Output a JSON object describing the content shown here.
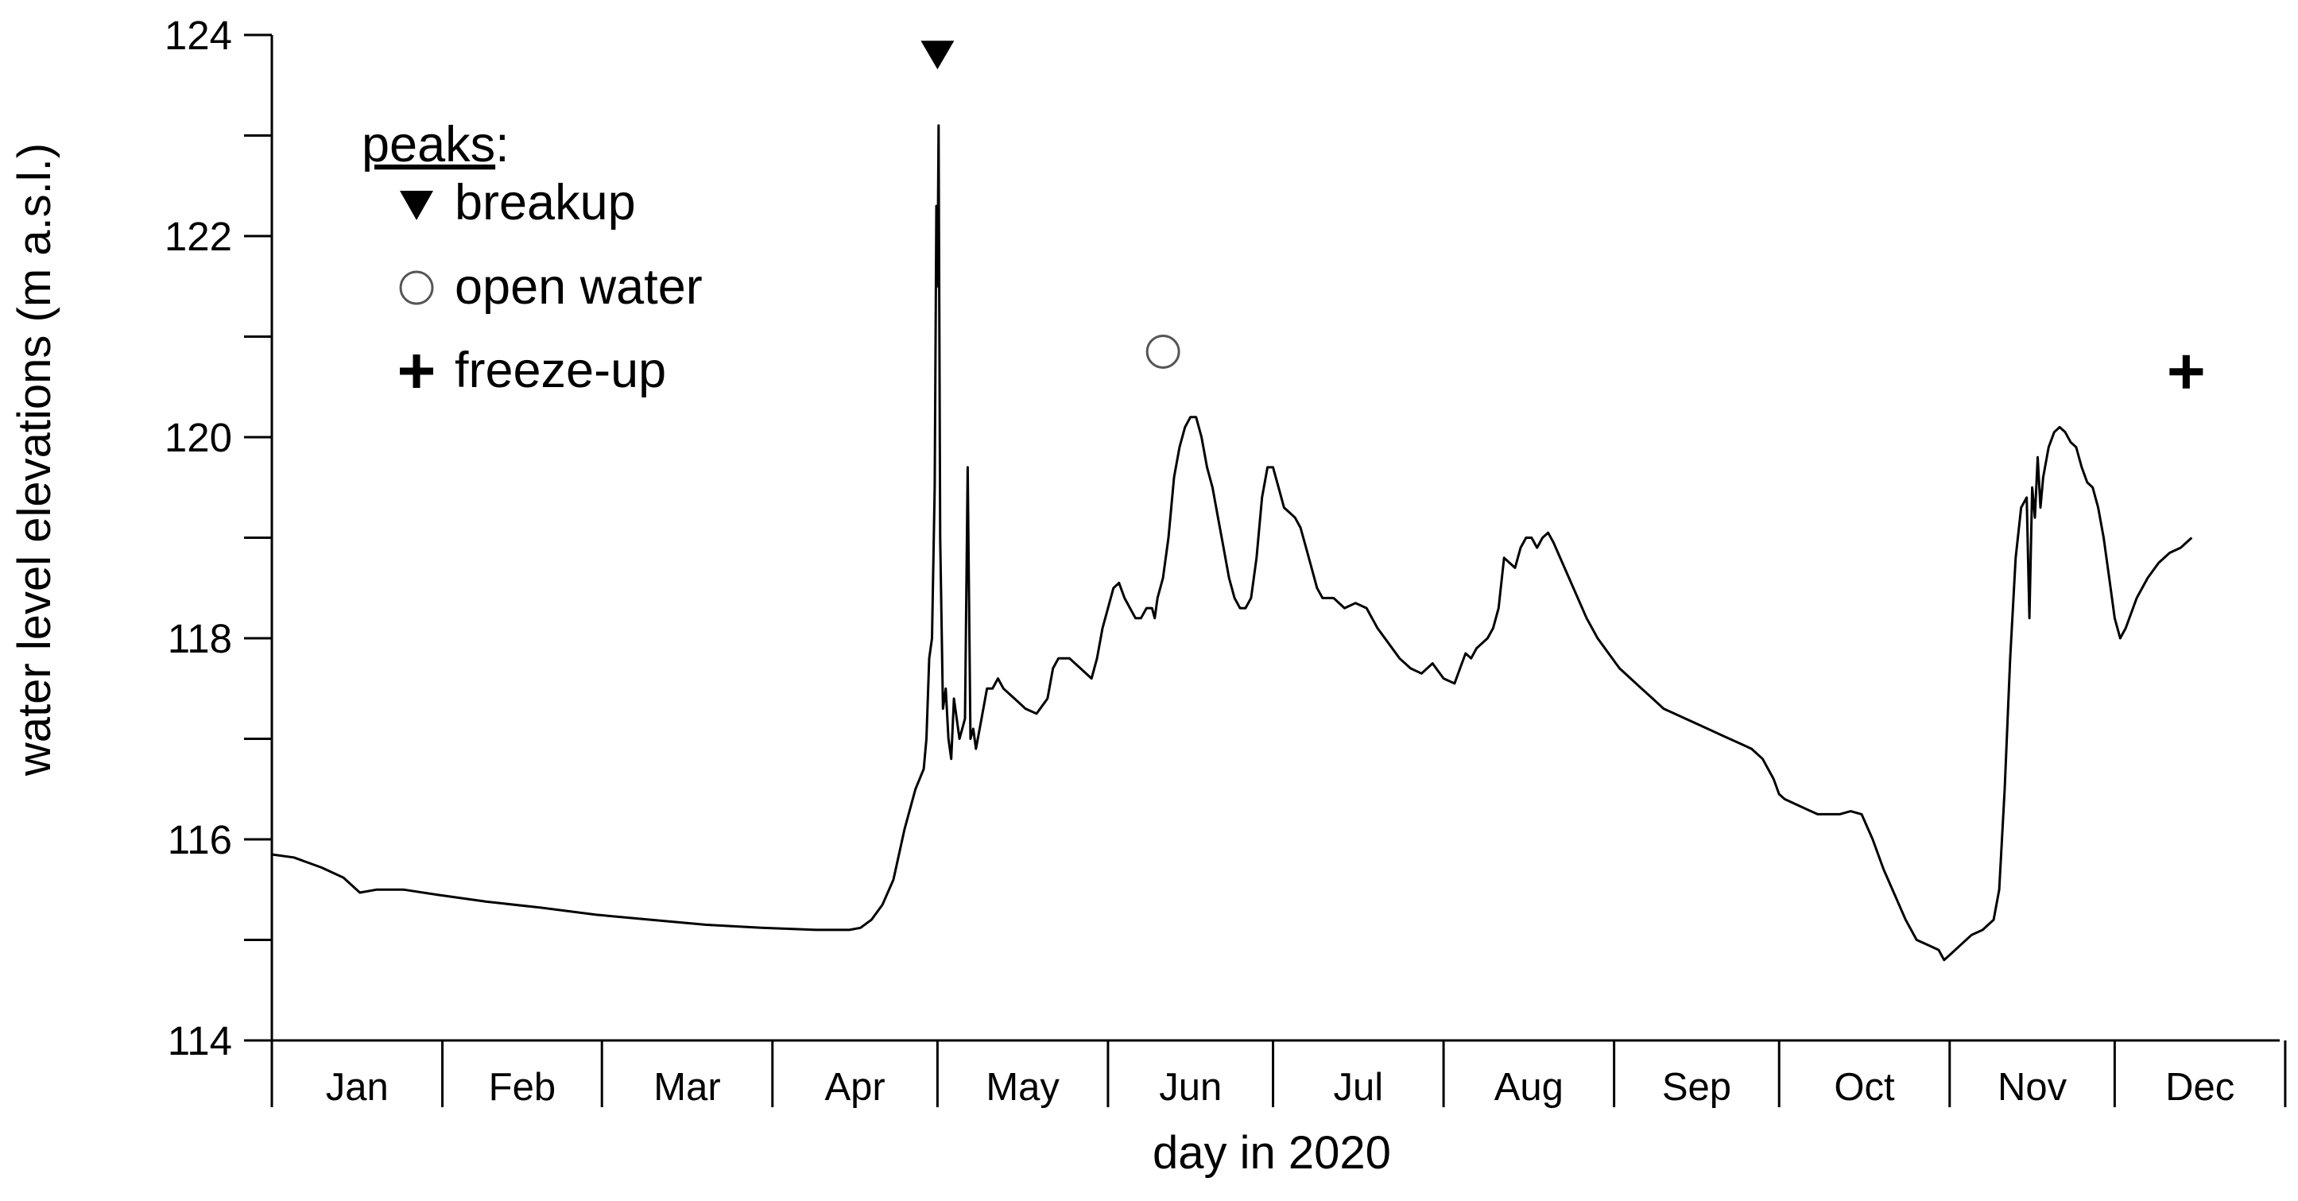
{
  "chart_data": {
    "type": "line",
    "xlabel": "day in 2020",
    "ylabel": "water level elevations (m a.s.l.)",
    "xlim": [
      1,
      366
    ],
    "ylim": [
      114,
      124
    ],
    "y_ticks": [
      114,
      116,
      118,
      120,
      122,
      124
    ],
    "y_minor_step": 1,
    "month_labels": [
      "Jan",
      "Feb",
      "Mar",
      "Apr",
      "May",
      "Jun",
      "Jul",
      "Aug",
      "Sep",
      "Oct",
      "Nov",
      "Dec"
    ],
    "month_days": [
      31,
      29,
      31,
      30,
      31,
      30,
      31,
      31,
      30,
      31,
      30,
      31
    ],
    "grid": false,
    "legend": {
      "position": "top-left",
      "title": "peaks",
      "title_suffix": ":",
      "entries": [
        {
          "marker": "down-triangle",
          "label": "breakup"
        },
        {
          "marker": "open-circle",
          "label": "open water"
        },
        {
          "marker": "plus",
          "label": "freeze-up"
        }
      ]
    },
    "peak_markers": [
      {
        "type": "breakup",
        "marker": "down-triangle",
        "day": 122,
        "value": 123.8
      },
      {
        "type": "open water",
        "marker": "open-circle",
        "day": 163,
        "value": 120.85
      },
      {
        "type": "freeze-up",
        "marker": "plus",
        "day": 349,
        "value": 120.65
      }
    ],
    "series": [
      {
        "points": [
          [
            1,
            115.85
          ],
          [
            5,
            115.82
          ],
          [
            10,
            115.72
          ],
          [
            14,
            115.62
          ],
          [
            17,
            115.47
          ],
          [
            20,
            115.5
          ],
          [
            25,
            115.5
          ],
          [
            31,
            115.45
          ],
          [
            40,
            115.38
          ],
          [
            50,
            115.32
          ],
          [
            60,
            115.25
          ],
          [
            70,
            115.2
          ],
          [
            80,
            115.15
          ],
          [
            90,
            115.12
          ],
          [
            100,
            115.1
          ],
          [
            106,
            115.1
          ],
          [
            108,
            115.12
          ],
          [
            110,
            115.2
          ],
          [
            112,
            115.35
          ],
          [
            114,
            115.6
          ],
          [
            116,
            116.1
          ],
          [
            118,
            116.5
          ],
          [
            119.5,
            116.7
          ],
          [
            120,
            117.0
          ],
          [
            120.5,
            117.8
          ],
          [
            121,
            118.0
          ],
          [
            121.5,
            119.5
          ],
          [
            121.8,
            122.3
          ],
          [
            122,
            121.5
          ],
          [
            122.2,
            123.1
          ],
          [
            122.5,
            119.0
          ],
          [
            123,
            117.3
          ],
          [
            123.5,
            117.5
          ],
          [
            124,
            117.0
          ],
          [
            124.5,
            116.8
          ],
          [
            125,
            117.4
          ],
          [
            126,
            117.0
          ],
          [
            127,
            117.2
          ],
          [
            127.5,
            119.7
          ],
          [
            128,
            117.0
          ],
          [
            128.5,
            117.1
          ],
          [
            129,
            116.9
          ],
          [
            130,
            117.2
          ],
          [
            131,
            117.5
          ],
          [
            132,
            117.5
          ],
          [
            133,
            117.6
          ],
          [
            134,
            117.5
          ],
          [
            136,
            117.4
          ],
          [
            138,
            117.3
          ],
          [
            140,
            117.25
          ],
          [
            142,
            117.4
          ],
          [
            143,
            117.7
          ],
          [
            144,
            117.8
          ],
          [
            146,
            117.8
          ],
          [
            148,
            117.7
          ],
          [
            150,
            117.6
          ],
          [
            151,
            117.8
          ],
          [
            152,
            118.1
          ],
          [
            153,
            118.3
          ],
          [
            154,
            118.5
          ],
          [
            155,
            118.55
          ],
          [
            156,
            118.4
          ],
          [
            157,
            118.3
          ],
          [
            158,
            118.2
          ],
          [
            159,
            118.2
          ],
          [
            160,
            118.3
          ],
          [
            161,
            118.3
          ],
          [
            161.5,
            118.2
          ],
          [
            162,
            118.4
          ],
          [
            163,
            118.6
          ],
          [
            164,
            119.0
          ],
          [
            165,
            119.6
          ],
          [
            166,
            119.9
          ],
          [
            167,
            120.1
          ],
          [
            168,
            120.2
          ],
          [
            169,
            120.2
          ],
          [
            170,
            120.0
          ],
          [
            171,
            119.7
          ],
          [
            172,
            119.5
          ],
          [
            173,
            119.2
          ],
          [
            174,
            118.9
          ],
          [
            175,
            118.6
          ],
          [
            176,
            118.4
          ],
          [
            177,
            118.3
          ],
          [
            178,
            118.3
          ],
          [
            179,
            118.4
          ],
          [
            180,
            118.8
          ],
          [
            181,
            119.4
          ],
          [
            182,
            119.7
          ],
          [
            183,
            119.7
          ],
          [
            184,
            119.5
          ],
          [
            185,
            119.3
          ],
          [
            186,
            119.25
          ],
          [
            187,
            119.2
          ],
          [
            188,
            119.1
          ],
          [
            189,
            118.9
          ],
          [
            190,
            118.7
          ],
          [
            191,
            118.5
          ],
          [
            192,
            118.4
          ],
          [
            194,
            118.4
          ],
          [
            196,
            118.3
          ],
          [
            198,
            118.35
          ],
          [
            200,
            118.3
          ],
          [
            202,
            118.1
          ],
          [
            204,
            117.95
          ],
          [
            206,
            117.8
          ],
          [
            208,
            117.7
          ],
          [
            210,
            117.65
          ],
          [
            212,
            117.75
          ],
          [
            214,
            117.6
          ],
          [
            216,
            117.55
          ],
          [
            217,
            117.7
          ],
          [
            218,
            117.85
          ],
          [
            219,
            117.8
          ],
          [
            220,
            117.9
          ],
          [
            222,
            118.0
          ],
          [
            223,
            118.1
          ],
          [
            224,
            118.3
          ],
          [
            225,
            118.8
          ],
          [
            226,
            118.75
          ],
          [
            227,
            118.7
          ],
          [
            228,
            118.9
          ],
          [
            229,
            119.0
          ],
          [
            230,
            119.0
          ],
          [
            231,
            118.9
          ],
          [
            232,
            119.0
          ],
          [
            233,
            119.05
          ],
          [
            234,
            118.95
          ],
          [
            236,
            118.7
          ],
          [
            238,
            118.45
          ],
          [
            240,
            118.2
          ],
          [
            242,
            118.0
          ],
          [
            244,
            117.85
          ],
          [
            246,
            117.7
          ],
          [
            248,
            117.6
          ],
          [
            250,
            117.5
          ],
          [
            252,
            117.4
          ],
          [
            254,
            117.3
          ],
          [
            256,
            117.25
          ],
          [
            258,
            117.2
          ],
          [
            260,
            117.15
          ],
          [
            262,
            117.1
          ],
          [
            264,
            117.05
          ],
          [
            266,
            117.0
          ],
          [
            268,
            116.95
          ],
          [
            270,
            116.9
          ],
          [
            272,
            116.8
          ],
          [
            274,
            116.6
          ],
          [
            275,
            116.45
          ],
          [
            276,
            116.4
          ],
          [
            278,
            116.35
          ],
          [
            280,
            116.3
          ],
          [
            282,
            116.25
          ],
          [
            284,
            116.25
          ],
          [
            286,
            116.25
          ],
          [
            288,
            116.28
          ],
          [
            290,
            116.25
          ],
          [
            292,
            116.0
          ],
          [
            294,
            115.7
          ],
          [
            296,
            115.45
          ],
          [
            298,
            115.2
          ],
          [
            300,
            115.0
          ],
          [
            302,
            114.95
          ],
          [
            304,
            114.9
          ],
          [
            305,
            114.8
          ],
          [
            306,
            114.85
          ],
          [
            308,
            114.95
          ],
          [
            310,
            115.05
          ],
          [
            312,
            115.1
          ],
          [
            313,
            115.15
          ],
          [
            314,
            115.2
          ],
          [
            315,
            115.5
          ],
          [
            316,
            116.5
          ],
          [
            317,
            117.8
          ],
          [
            318,
            118.8
          ],
          [
            319,
            119.3
          ],
          [
            320,
            119.4
          ],
          [
            320.5,
            118.2
          ],
          [
            321,
            119.5
          ],
          [
            321.5,
            119.2
          ],
          [
            322,
            119.8
          ],
          [
            322.5,
            119.3
          ],
          [
            323,
            119.6
          ],
          [
            324,
            119.9
          ],
          [
            325,
            120.05
          ],
          [
            326,
            120.1
          ],
          [
            327,
            120.05
          ],
          [
            328,
            119.95
          ],
          [
            329,
            119.9
          ],
          [
            330,
            119.7
          ],
          [
            331,
            119.55
          ],
          [
            332,
            119.5
          ],
          [
            333,
            119.3
          ],
          [
            334,
            119.0
          ],
          [
            335,
            118.6
          ],
          [
            336,
            118.2
          ],
          [
            337,
            118.0
          ],
          [
            338,
            118.1
          ],
          [
            340,
            118.4
          ],
          [
            342,
            118.6
          ],
          [
            344,
            118.75
          ],
          [
            346,
            118.85
          ],
          [
            348,
            118.9
          ],
          [
            349,
            118.95
          ],
          [
            350,
            119.0
          ]
        ]
      }
    ]
  }
}
